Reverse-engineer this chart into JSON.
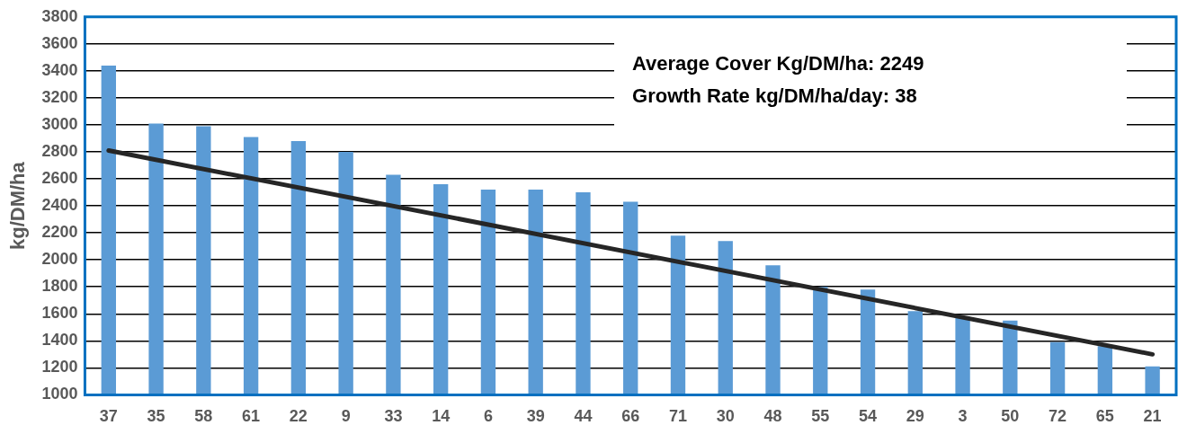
{
  "chart_data": {
    "type": "bar",
    "ylabel": "kg/DM/ha",
    "categories": [
      "37",
      "35",
      "58",
      "61",
      "22",
      "9",
      "33",
      "14",
      "6",
      "39",
      "44",
      "66",
      "71",
      "30",
      "48",
      "55",
      "54",
      "29",
      "3",
      "50",
      "72",
      "65",
      "21"
    ],
    "series": [
      {
        "color": "#5b9bd5",
        "values": [
          3440,
          3010,
          2990,
          2910,
          2880,
          2800,
          2630,
          2560,
          2520,
          2520,
          2500,
          2430,
          2180,
          2140,
          1960,
          1800,
          1780,
          1620,
          1580,
          1550,
          1390,
          1360,
          1210
        ]
      },
      {
        "type": "line",
        "color": "#262626",
        "x": [
          "37",
          "21"
        ],
        "values": [
          2810,
          1300
        ]
      }
    ],
    "ylim": [
      1000,
      3800
    ],
    "yticks": [
      1000,
      1200,
      1400,
      1600,
      1800,
      2000,
      2200,
      2400,
      2600,
      2800,
      3000,
      3200,
      3400,
      3600,
      3800
    ],
    "grid": "y",
    "legend": false,
    "marker": "none",
    "annotations": [
      "Average Cover Kg/DM/ha: 2249",
      "Growth Rate kg/DM/ha/day: 38"
    ]
  }
}
